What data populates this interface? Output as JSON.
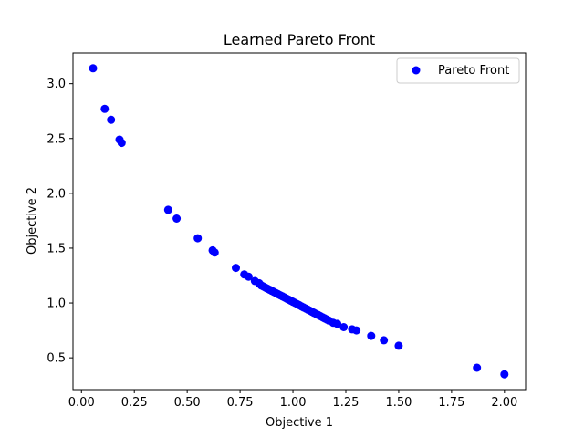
{
  "chart_data": {
    "type": "scatter",
    "title": "Learned Pareto Front",
    "xlabel": "Objective 1",
    "ylabel": "Objective 2",
    "xlim": [
      -0.04,
      2.1
    ],
    "ylim": [
      0.21,
      3.28
    ],
    "xticks": [
      "0.00",
      "0.25",
      "0.50",
      "0.75",
      "1.00",
      "1.25",
      "1.50",
      "1.75",
      "2.00"
    ],
    "yticks": [
      "0.5",
      "1.0",
      "1.5",
      "2.0",
      "2.5",
      "3.0"
    ],
    "grid": false,
    "legend": {
      "position": "top-right",
      "entries": [
        "Pareto Front"
      ]
    },
    "series": [
      {
        "name": "Pareto Front",
        "color": "#0000ff",
        "marker": "circle",
        "points": [
          [
            0.055,
            3.14
          ],
          [
            0.11,
            2.77
          ],
          [
            0.14,
            2.67
          ],
          [
            0.18,
            2.49
          ],
          [
            0.19,
            2.46
          ],
          [
            0.41,
            1.85
          ],
          [
            0.45,
            1.77
          ],
          [
            0.55,
            1.59
          ],
          [
            0.62,
            1.48
          ],
          [
            0.63,
            1.46
          ],
          [
            0.73,
            1.32
          ],
          [
            0.77,
            1.26
          ],
          [
            0.79,
            1.24
          ],
          [
            0.82,
            1.2
          ],
          [
            0.84,
            1.18
          ],
          [
            0.85,
            1.16
          ],
          [
            0.86,
            1.15
          ],
          [
            0.87,
            1.14
          ],
          [
            0.88,
            1.13
          ],
          [
            0.89,
            1.12
          ],
          [
            0.9,
            1.11
          ],
          [
            0.91,
            1.1
          ],
          [
            0.92,
            1.09
          ],
          [
            0.93,
            1.08
          ],
          [
            0.94,
            1.07
          ],
          [
            0.95,
            1.06
          ],
          [
            0.96,
            1.05
          ],
          [
            0.97,
            1.04
          ],
          [
            0.98,
            1.03
          ],
          [
            0.99,
            1.02
          ],
          [
            1.0,
            1.01
          ],
          [
            1.01,
            1.0
          ],
          [
            1.02,
            0.99
          ],
          [
            1.03,
            0.98
          ],
          [
            1.04,
            0.97
          ],
          [
            1.05,
            0.96
          ],
          [
            1.06,
            0.95
          ],
          [
            1.07,
            0.94
          ],
          [
            1.08,
            0.93
          ],
          [
            1.09,
            0.92
          ],
          [
            1.1,
            0.91
          ],
          [
            1.11,
            0.9
          ],
          [
            1.12,
            0.89
          ],
          [
            1.13,
            0.88
          ],
          [
            1.14,
            0.87
          ],
          [
            1.15,
            0.86
          ],
          [
            1.16,
            0.85
          ],
          [
            1.17,
            0.84
          ],
          [
            1.19,
            0.82
          ],
          [
            1.21,
            0.81
          ],
          [
            1.24,
            0.78
          ],
          [
            1.28,
            0.76
          ],
          [
            1.3,
            0.75
          ],
          [
            1.37,
            0.7
          ],
          [
            1.43,
            0.66
          ],
          [
            1.5,
            0.61
          ],
          [
            1.87,
            0.41
          ],
          [
            2.0,
            0.35
          ]
        ]
      }
    ]
  }
}
